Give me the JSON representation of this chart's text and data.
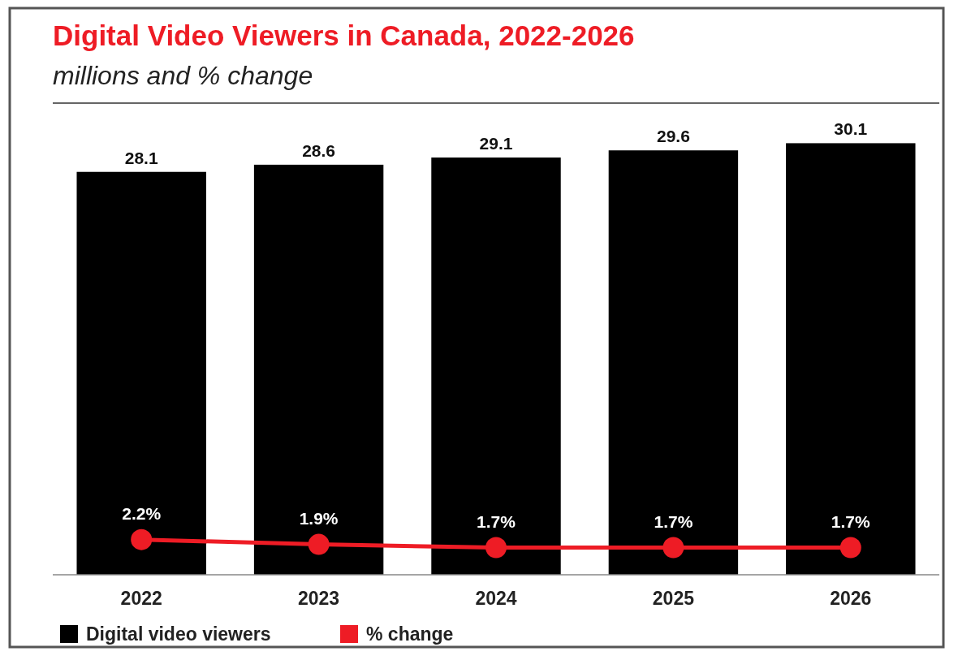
{
  "chart_data": {
    "type": "bar",
    "title": "Digital Video Viewers in Canada, 2022-2026",
    "subtitle": "millions and % change",
    "categories": [
      "2022",
      "2023",
      "2024",
      "2025",
      "2026"
    ],
    "series": [
      {
        "name": "Digital video viewers",
        "color": "#000000",
        "values": [
          28.1,
          28.6,
          29.1,
          29.6,
          30.1
        ]
      },
      {
        "name": "% change",
        "type": "line",
        "axis": "y2",
        "color": "#ee1c25",
        "values": [
          2.2,
          1.9,
          1.7,
          1.7,
          1.7
        ],
        "value_labels": [
          "2.2%",
          "1.9%",
          "1.7%",
          "1.7%",
          "1.7%"
        ]
      }
    ],
    "tick_labels": "x",
    "data_labels": true,
    "marker": "circle",
    "legend": "bottom left"
  }
}
